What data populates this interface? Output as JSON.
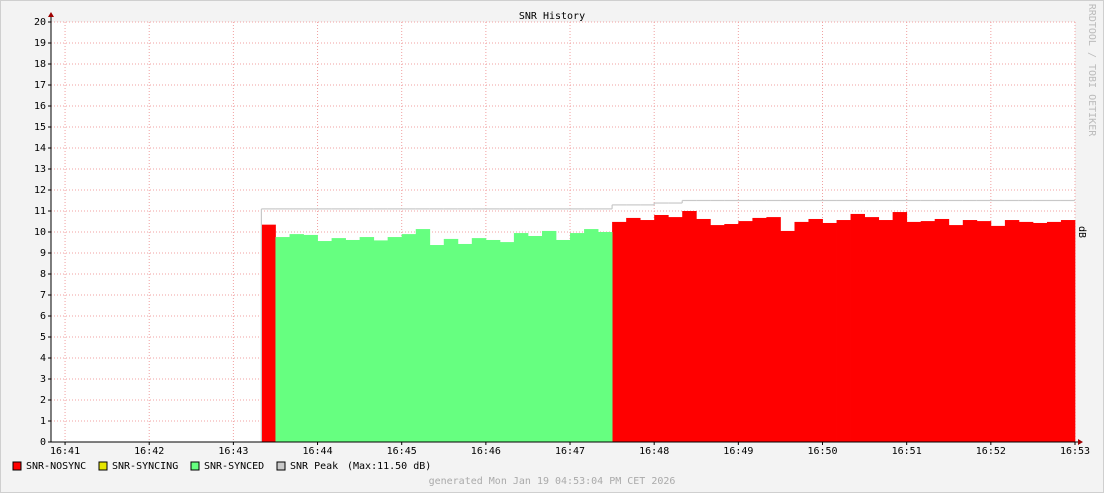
{
  "chart_data": {
    "type": "area",
    "title": "SNR History",
    "y_label": "dB",
    "side_label": "RRDTOOL / TOBI OETIKER",
    "footer": "generated Mon Jan 19 04:53:04 PM CET 2026",
    "x": [
      43.333,
      43.5,
      43.667,
      43.833,
      44,
      44.167,
      44.333,
      44.5,
      44.667,
      44.833,
      45,
      45.167,
      45.333,
      45.5,
      45.667,
      45.833,
      46,
      46.167,
      46.333,
      46.5,
      46.667,
      46.833,
      47,
      47.167,
      47.333,
      47.5,
      47.667,
      47.833,
      48,
      48.167,
      48.333,
      48.5,
      48.667,
      48.833,
      49,
      49.167,
      49.333,
      49.5,
      49.667,
      49.833,
      50,
      50.167,
      50.333,
      50.5,
      50.667,
      50.833,
      51,
      51.167,
      51.333,
      51.5,
      51.667,
      51.833,
      52,
      52.167,
      52.333,
      52.5,
      52.667,
      52.833
    ],
    "xlim": [
      40.833,
      53
    ],
    "xticks": [
      {
        "value": 41,
        "label": "16:41"
      },
      {
        "value": 42,
        "label": "16:42"
      },
      {
        "value": 43,
        "label": "16:43"
      },
      {
        "value": 44,
        "label": "16:44"
      },
      {
        "value": 45,
        "label": "16:45"
      },
      {
        "value": 46,
        "label": "16:46"
      },
      {
        "value": 47,
        "label": "16:47"
      },
      {
        "value": 48,
        "label": "16:48"
      },
      {
        "value": 49,
        "label": "16:49"
      },
      {
        "value": 50,
        "label": "16:50"
      },
      {
        "value": 51,
        "label": "16:51"
      },
      {
        "value": 52,
        "label": "16:52"
      },
      {
        "value": 53,
        "label": "16:53"
      }
    ],
    "ylim": [
      0,
      20
    ],
    "yticks": [
      0,
      1,
      2,
      3,
      4,
      5,
      6,
      7,
      8,
      9,
      10,
      11,
      12,
      13,
      14,
      15,
      16,
      17,
      18,
      19,
      20
    ],
    "grid": true,
    "series": [
      {
        "name": "SNR-NOSYNC",
        "color": "#ff0000",
        "style": "step-area",
        "values": [
          10.35,
          null,
          null,
          null,
          null,
          null,
          null,
          null,
          null,
          null,
          null,
          null,
          null,
          null,
          null,
          null,
          null,
          null,
          null,
          null,
          null,
          null,
          null,
          null,
          null,
          10.48,
          10.67,
          10.57,
          10.81,
          10.71,
          11.0,
          10.62,
          10.33,
          10.38,
          10.52,
          10.67,
          10.71,
          10.05,
          10.48,
          10.62,
          10.43,
          10.57,
          10.86,
          10.71,
          10.57,
          10.95,
          10.48,
          10.52,
          10.62,
          10.33,
          10.57,
          10.52,
          10.29,
          10.57,
          10.48,
          10.43,
          10.48,
          10.57
        ]
      },
      {
        "name": "SNR-SYNCING",
        "color": "#e6e600",
        "style": "step-area",
        "values": [
          null,
          null,
          null,
          null,
          null,
          null,
          null,
          null,
          null,
          null,
          null,
          null,
          null,
          null,
          null,
          null,
          null,
          null,
          null,
          null,
          null,
          null,
          null,
          null,
          null,
          null,
          null,
          null,
          null,
          null,
          null,
          null,
          null,
          null,
          null,
          null,
          null,
          null,
          null,
          null,
          null,
          null,
          null,
          null,
          null,
          null,
          null,
          null,
          null,
          null,
          null,
          null,
          null,
          null,
          null,
          null,
          null,
          null
        ]
      },
      {
        "name": "SNR-SYNCED",
        "color": "#66ff80",
        "style": "step-area",
        "values": [
          null,
          9.76,
          9.9,
          9.86,
          9.57,
          9.71,
          9.62,
          9.76,
          9.6,
          9.76,
          9.9,
          10.14,
          9.38,
          9.67,
          9.43,
          9.71,
          9.62,
          9.52,
          9.95,
          9.81,
          10.05,
          9.62,
          9.95,
          10.14,
          10.0,
          null,
          null,
          null,
          null,
          null,
          null,
          null,
          null,
          null,
          null,
          null,
          null,
          null,
          null,
          null,
          null,
          null,
          null,
          null,
          null,
          null,
          null,
          null,
          null,
          null,
          null,
          null,
          null,
          null,
          null,
          null,
          null,
          null
        ]
      },
      {
        "name": "SNR Peak",
        "color": "#c8c8c8",
        "style": "step-line",
        "legend_note": "(Max:11.50 dB)",
        "values": [
          11.1,
          11.1,
          11.1,
          11.1,
          11.1,
          11.1,
          11.1,
          11.1,
          11.1,
          11.1,
          11.1,
          11.1,
          11.1,
          11.1,
          11.1,
          11.1,
          11.1,
          11.1,
          11.1,
          11.1,
          11.1,
          11.1,
          11.1,
          11.1,
          11.1,
          11.29,
          11.29,
          11.29,
          11.38,
          11.38,
          11.5,
          11.5,
          11.5,
          11.5,
          11.5,
          11.5,
          11.5,
          11.5,
          11.5,
          11.5,
          11.5,
          11.5,
          11.5,
          11.5,
          11.5,
          11.5,
          11.5,
          11.5,
          11.5,
          11.5,
          11.5,
          11.5,
          11.5,
          11.5,
          11.5,
          11.5,
          11.5,
          11.5
        ]
      }
    ]
  }
}
